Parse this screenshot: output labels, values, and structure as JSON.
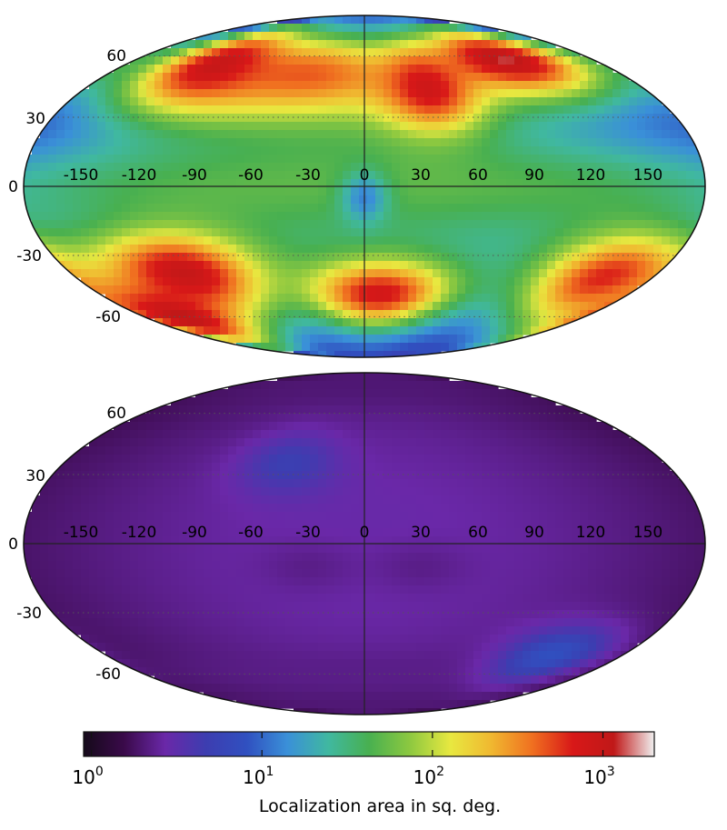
{
  "chart_data": {
    "type": "heatmap",
    "projection": "Mollweide",
    "colormap": "spectral",
    "maps": [
      {
        "panel": "top",
        "grid": true,
        "lon_ticks": [
          "-150",
          "-120",
          "-90",
          "-60",
          "-30",
          "0",
          "30",
          "60",
          "90",
          "120",
          "150"
        ],
        "lat_ticks": [
          "60",
          "30",
          "0",
          "-30",
          "-60"
        ],
        "blobs": [
          {
            "lon": 0,
            "lat": 0,
            "slon": 180,
            "slat": 90,
            "value": 1.4
          },
          {
            "lon": 0,
            "lat": 0,
            "slon": 180,
            "slat": 14,
            "value": 1.7
          },
          {
            "lon": -35,
            "lat": 50,
            "slon": 55,
            "slat": 16,
            "value": 2.6
          },
          {
            "lon": -110,
            "lat": 55,
            "slon": 35,
            "slat": 16,
            "value": 3.0
          },
          {
            "lon": 40,
            "lat": 43,
            "slon": 22,
            "slat": 14,
            "value": 2.9
          },
          {
            "lon": 110,
            "lat": 58,
            "slon": 45,
            "slat": 14,
            "value": 3.1
          },
          {
            "lon": -110,
            "lat": -38,
            "slon": 35,
            "slat": 14,
            "value": 3.0
          },
          {
            "lon": -150,
            "lat": -60,
            "slon": 40,
            "slat": 14,
            "value": 3.1
          },
          {
            "lon": 10,
            "lat": -48,
            "slon": 35,
            "slat": 12,
            "value": 2.9
          },
          {
            "lon": 150,
            "lat": -40,
            "slon": 35,
            "slat": 16,
            "value": 2.8
          },
          {
            "lon": 0,
            "lat": -5,
            "slon": 9,
            "slat": 8,
            "value": 1.1
          }
        ]
      },
      {
        "panel": "bottom",
        "grid": true,
        "lon_ticks": [
          "-150",
          "-120",
          "-90",
          "-60",
          "-30",
          "0",
          "30",
          "60",
          "90",
          "120",
          "150"
        ],
        "lat_ticks": [
          "60",
          "30",
          "0",
          "-30",
          "-60"
        ],
        "blobs": [
          {
            "lon": 0,
            "lat": 0,
            "slon": 180,
            "slat": 90,
            "value": 0.45
          },
          {
            "lon": 0,
            "lat": 78,
            "slon": 180,
            "slat": 10,
            "value": 0.3
          },
          {
            "lon": 0,
            "lat": -78,
            "slon": 180,
            "slat": 10,
            "value": 0.3
          },
          {
            "lon": 0,
            "lat": -60,
            "slon": 120,
            "slat": 8,
            "value": 0.35
          },
          {
            "lon": -45,
            "lat": 35,
            "slon": 20,
            "slat": 10,
            "value": 0.7
          },
          {
            "lon": 130,
            "lat": -50,
            "slon": 25,
            "slat": 10,
            "value": 0.9
          },
          {
            "lon": -30,
            "lat": -10,
            "slon": 20,
            "slat": 8,
            "value": 0.35
          },
          {
            "lon": 30,
            "lat": -10,
            "slon": 20,
            "slat": 8,
            "value": 0.35
          }
        ]
      }
    ],
    "colorbar": {
      "scale": "log",
      "range": [
        0.9,
        2000
      ],
      "ticks": [
        {
          "value": 1,
          "base": "10",
          "exp": "0"
        },
        {
          "value": 10,
          "base": "10",
          "exp": "1"
        },
        {
          "value": 100,
          "base": "10",
          "exp": "2"
        },
        {
          "value": 1000,
          "base": "10",
          "exp": "3"
        }
      ],
      "label": "Localization area in sq. deg."
    },
    "colors": {
      "stops": [
        "#150a1a",
        "#3a0a4a",
        "#6a28a8",
        "#3d3db0",
        "#3050c0",
        "#3a90d8",
        "#40b8a0",
        "#48b050",
        "#8cc840",
        "#e8e840",
        "#f0b830",
        "#f07020",
        "#d81818",
        "#c01818",
        "#f0f0f0"
      ],
      "grid": "#555555",
      "axis": "#222222"
    }
  }
}
